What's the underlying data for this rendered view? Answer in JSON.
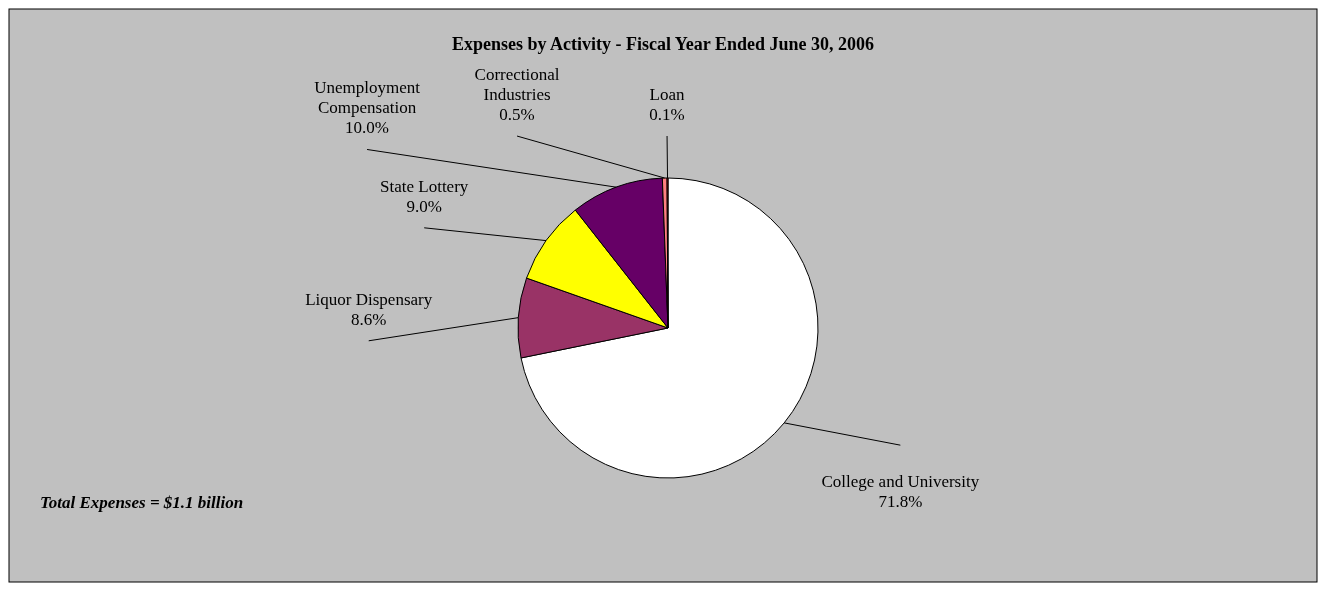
{
  "chart_data": {
    "type": "pie",
    "title": "Expenses by Activity - Fiscal Year Ended June 30, 2006",
    "categories": [
      "College and University",
      "Liquor Dispensary",
      "State Lottery",
      "Unemployment Compensation",
      "Correctional Industries",
      "Loan"
    ],
    "values": [
      71.8,
      8.6,
      9.0,
      10.0,
      0.5,
      0.1
    ],
    "value_labels": [
      "71.8%",
      "8.6%",
      "9.0%",
      "10.0%",
      "0.5%",
      "0.1%"
    ],
    "colors": [
      "#ffffff",
      "#993366",
      "#ffff00",
      "#660066",
      "#ff8080",
      "#ff0000"
    ],
    "annotations": [
      "Total Expenses = $1.1 billion"
    ]
  }
}
